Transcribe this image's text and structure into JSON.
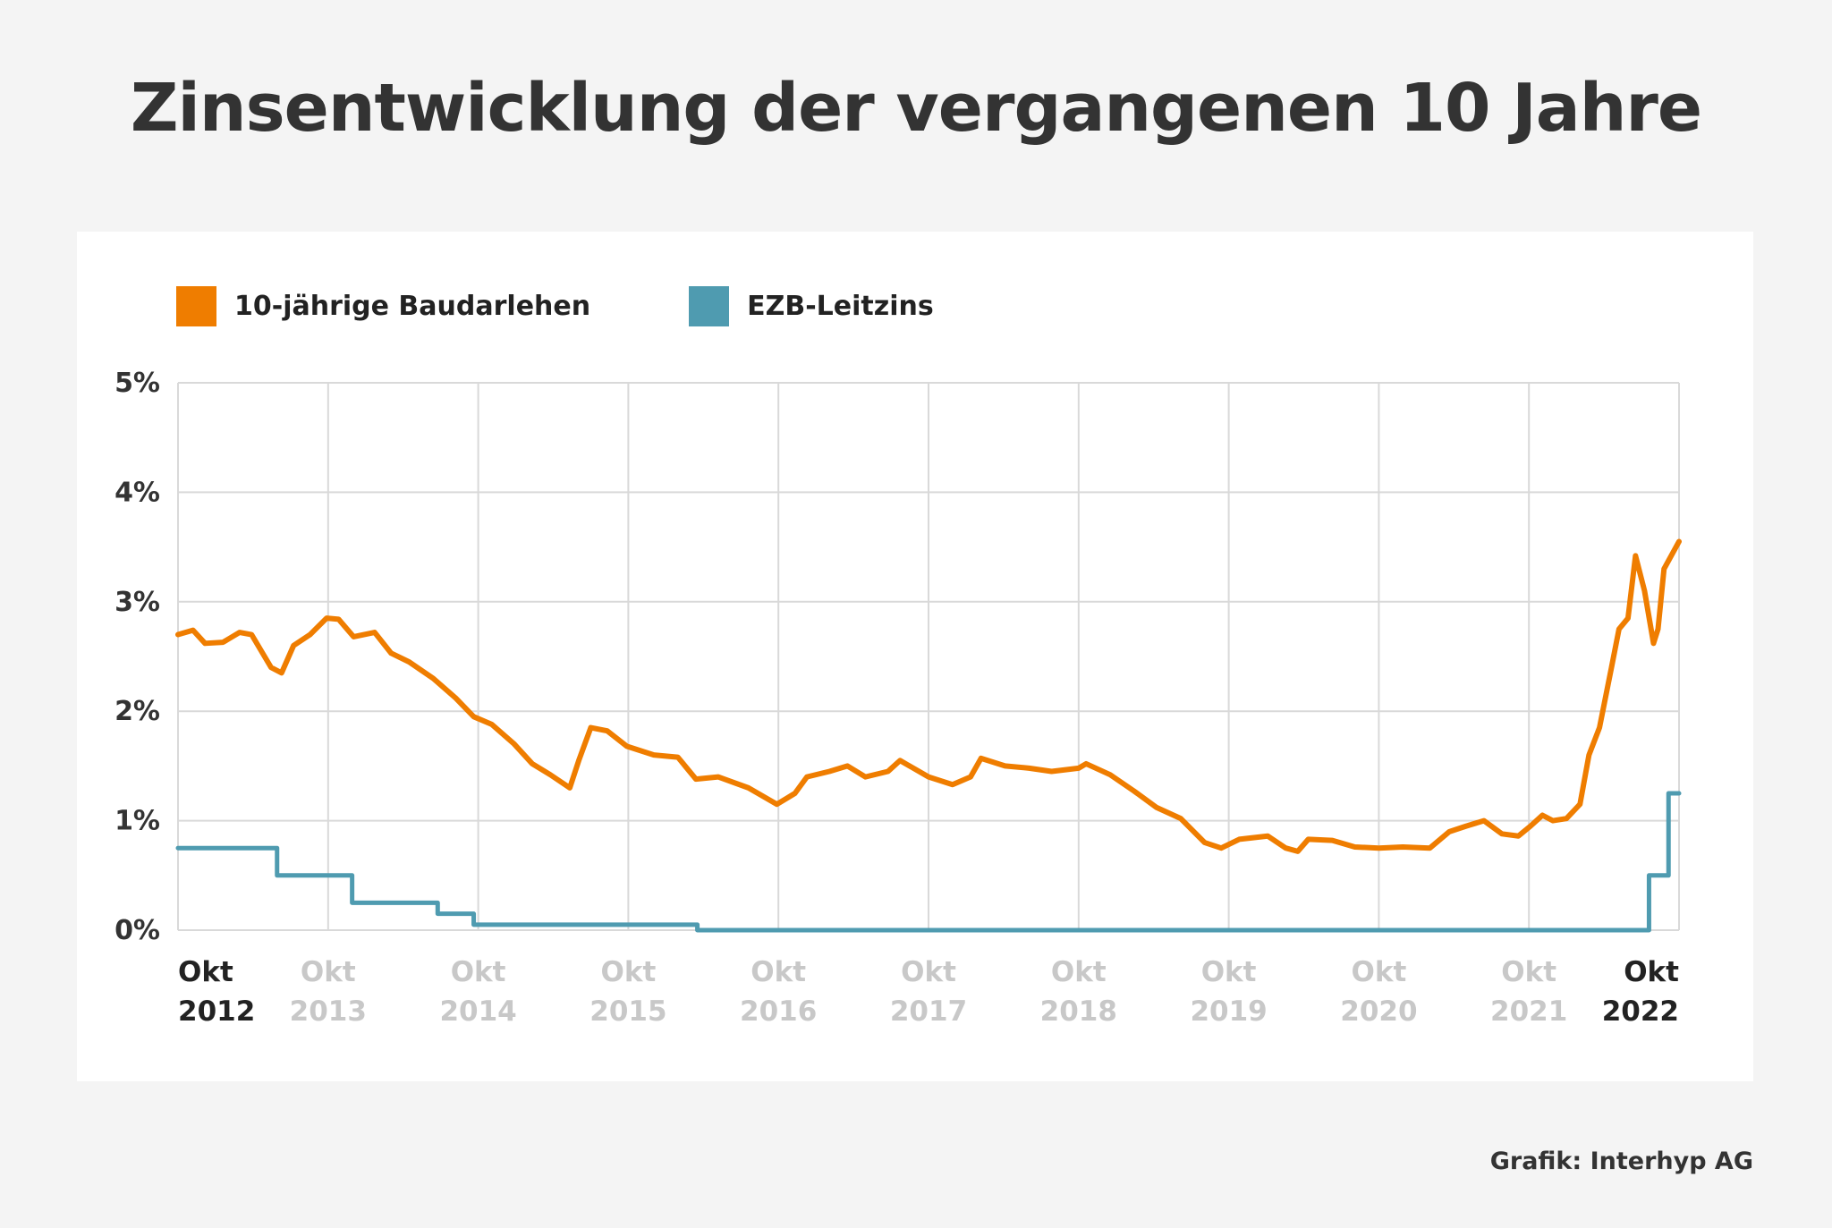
{
  "page": {
    "title": "Zinsentwicklung der vergangenen 10 Jahre",
    "credit": "Grafik: Interhyp AG"
  },
  "legend": [
    {
      "label": "10-jährige Baudarlehen",
      "color": "#ef7d00"
    },
    {
      "label": "EZB-Leitzins",
      "color": "#4f9bb0"
    }
  ],
  "chart_data": {
    "type": "line",
    "title": "Zinsentwicklung der vergangenen 10 Jahre",
    "xlabel": "",
    "ylabel": "",
    "x_unit": "years since Okt 2012",
    "xlim": [
      0,
      10
    ],
    "ylim": [
      0,
      5
    ],
    "grid": true,
    "legend_position": "top-left",
    "y_ticks": [
      "0%",
      "1%",
      "2%",
      "3%",
      "4%",
      "5%"
    ],
    "x_ticks": [
      {
        "month": "Okt",
        "year": "2012",
        "emphasis": true
      },
      {
        "month": "Okt",
        "year": "2013",
        "emphasis": false
      },
      {
        "month": "Okt",
        "year": "2014",
        "emphasis": false
      },
      {
        "month": "Okt",
        "year": "2015",
        "emphasis": false
      },
      {
        "month": "Okt",
        "year": "2016",
        "emphasis": false
      },
      {
        "month": "Okt",
        "year": "2017",
        "emphasis": false
      },
      {
        "month": "Okt",
        "year": "2018",
        "emphasis": false
      },
      {
        "month": "Okt",
        "year": "2019",
        "emphasis": false
      },
      {
        "month": "Okt",
        "year": "2020",
        "emphasis": false
      },
      {
        "month": "Okt",
        "year": "2021",
        "emphasis": false
      },
      {
        "month": "Okt",
        "year": "2022",
        "emphasis": true
      }
    ],
    "series": [
      {
        "name": "10-jährige Baudarlehen",
        "color": "#ef7d00",
        "step": false,
        "x": [
          0,
          0.1,
          0.18,
          0.3,
          0.41,
          0.49,
          0.62,
          0.69,
          0.77,
          0.88,
          0.99,
          1.07,
          1.17,
          1.31,
          1.42,
          1.54,
          1.7,
          1.85,
          1.97,
          2.09,
          2.24,
          2.36,
          2.48,
          2.61,
          2.67,
          2.75,
          2.86,
          2.99,
          3.17,
          3.33,
          3.45,
          3.6,
          3.8,
          3.99,
          4.11,
          4.19,
          4.34,
          4.46,
          4.58,
          4.73,
          4.81,
          5.0,
          5.16,
          5.28,
          5.35,
          5.51,
          5.67,
          5.82,
          6.0,
          6.05,
          6.21,
          6.37,
          6.52,
          6.68,
          6.84,
          6.95,
          7.07,
          7.26,
          7.38,
          7.46,
          7.53,
          7.69,
          7.84,
          8.0,
          8.16,
          8.34,
          8.47,
          8.58,
          8.7,
          8.82,
          8.93,
          9.01,
          9.09,
          9.16,
          9.25,
          9.34,
          9.4,
          9.47,
          9.55,
          9.6,
          9.66,
          9.71,
          9.77,
          9.83,
          9.86,
          9.9,
          10.0
        ],
        "values": [
          2.7,
          2.74,
          2.62,
          2.63,
          2.72,
          2.7,
          2.4,
          2.35,
          2.6,
          2.7,
          2.85,
          2.84,
          2.68,
          2.72,
          2.53,
          2.45,
          2.3,
          2.12,
          1.95,
          1.88,
          1.7,
          1.52,
          1.42,
          1.3,
          1.55,
          1.85,
          1.82,
          1.68,
          1.6,
          1.58,
          1.38,
          1.4,
          1.3,
          1.15,
          1.25,
          1.4,
          1.45,
          1.5,
          1.4,
          1.45,
          1.55,
          1.4,
          1.33,
          1.4,
          1.57,
          1.5,
          1.48,
          1.45,
          1.48,
          1.52,
          1.42,
          1.27,
          1.12,
          1.02,
          0.8,
          0.75,
          0.83,
          0.86,
          0.75,
          0.72,
          0.83,
          0.82,
          0.76,
          0.75,
          0.76,
          0.75,
          0.9,
          0.95,
          1.0,
          0.88,
          0.86,
          0.95,
          1.05,
          1.0,
          1.02,
          1.15,
          1.6,
          1.85,
          2.4,
          2.75,
          2.85,
          3.42,
          3.1,
          2.62,
          2.75,
          3.3,
          3.55
        ]
      },
      {
        "name": "EZB-Leitzins",
        "color": "#4f9bb0",
        "step": true,
        "x": [
          0,
          0.66,
          1.16,
          1.73,
          1.97,
          3.46,
          9.8,
          9.93,
          10.0
        ],
        "values": [
          0.75,
          0.5,
          0.25,
          0.15,
          0.05,
          0.0,
          0.5,
          1.25,
          1.25
        ]
      }
    ]
  }
}
